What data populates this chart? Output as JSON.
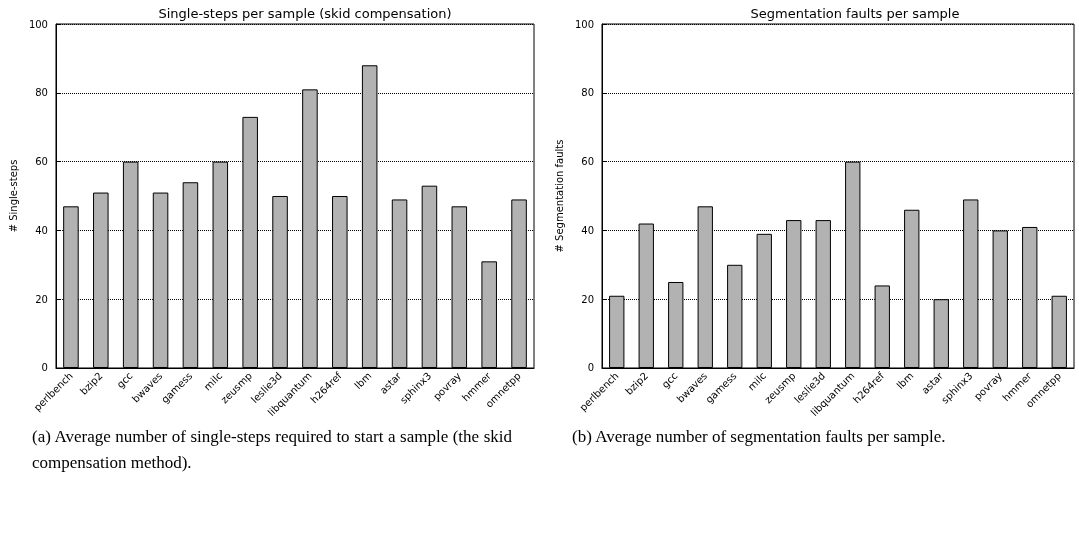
{
  "chart_data": [
    {
      "type": "bar",
      "title": "Single-steps per sample (skid compensation)",
      "ylabel": "# Single-steps",
      "categories": [
        "perlbench",
        "bzip2",
        "gcc",
        "bwaves",
        "gamess",
        "milc",
        "zeusmp",
        "leslie3d",
        "libquantum",
        "h264ref",
        "lbm",
        "astar",
        "sphinx3",
        "povray",
        "hmmer",
        "omnetpp"
      ],
      "values": [
        47,
        51,
        60,
        51,
        54,
        60,
        73,
        50,
        81,
        50,
        88,
        49,
        53,
        47,
        31,
        49
      ],
      "color": "#b2b2b2",
      "ylim": [
        0,
        100
      ],
      "yticks": [
        0,
        20,
        40,
        60,
        80,
        100
      ],
      "grid": "y",
      "annotations": [
        "(a) Average number of single-steps required to start a sample (the skid compensation method)."
      ]
    },
    {
      "type": "bar",
      "title": "Segmentation faults per sample",
      "ylabel": "# Segmentation faults",
      "categories": [
        "perlbench",
        "bzip2",
        "gcc",
        "bwaves",
        "gamess",
        "milc",
        "zeusmp",
        "leslie3d",
        "libquantum",
        "h264ref",
        "lbm",
        "astar",
        "sphinx3",
        "povray",
        "hmmer",
        "omnetpp"
      ],
      "values": [
        21,
        42,
        25,
        47,
        30,
        39,
        43,
        43,
        60,
        24,
        46,
        20,
        49,
        40,
        41,
        21
      ],
      "color": "#b2b2b2",
      "ylim": [
        0,
        100
      ],
      "yticks": [
        0,
        20,
        40,
        60,
        80,
        100
      ],
      "grid": "y",
      "annotations": [
        "(b) Average number of segmentation faults per sample."
      ]
    }
  ]
}
